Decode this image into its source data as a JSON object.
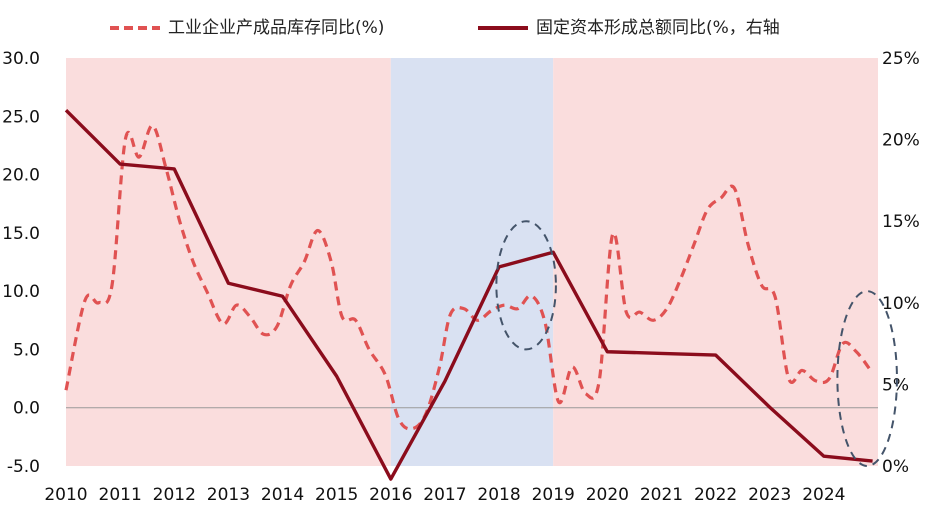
{
  "chart_data": {
    "type": "line",
    "legend_position": "top",
    "series": [
      {
        "name": "工业企业产成品库存同比(%)",
        "axis": "left",
        "style": "dashed",
        "color": "#E05252",
        "points": [
          [
            2010.0,
            1.5
          ],
          [
            2010.35,
            9.2
          ],
          [
            2010.6,
            9.0
          ],
          [
            2010.85,
            10.5
          ],
          [
            2011.1,
            23.1
          ],
          [
            2011.35,
            21.5
          ],
          [
            2011.6,
            24.2
          ],
          [
            2011.85,
            20.5
          ],
          [
            2012.1,
            16.0
          ],
          [
            2012.35,
            12.5
          ],
          [
            2012.6,
            10.0
          ],
          [
            2012.9,
            7.2
          ],
          [
            2013.15,
            8.8
          ],
          [
            2013.4,
            7.8
          ],
          [
            2013.65,
            6.3
          ],
          [
            2013.9,
            7.0
          ],
          [
            2014.15,
            10.5
          ],
          [
            2014.4,
            12.5
          ],
          [
            2014.65,
            15.2
          ],
          [
            2014.9,
            12.5
          ],
          [
            2015.1,
            7.8
          ],
          [
            2015.35,
            7.5
          ],
          [
            2015.6,
            5.0
          ],
          [
            2015.9,
            2.8
          ],
          [
            2016.15,
            -1.0
          ],
          [
            2016.4,
            -1.8
          ],
          [
            2016.65,
            -0.5
          ],
          [
            2016.9,
            3.5
          ],
          [
            2017.1,
            8.0
          ],
          [
            2017.35,
            8.5
          ],
          [
            2017.6,
            7.5
          ],
          [
            2017.85,
            8.3
          ],
          [
            2018.1,
            8.8
          ],
          [
            2018.35,
            8.5
          ],
          [
            2018.6,
            9.6
          ],
          [
            2018.85,
            7.3
          ],
          [
            2019.1,
            0.5
          ],
          [
            2019.35,
            3.5
          ],
          [
            2019.6,
            1.2
          ],
          [
            2019.85,
            2.3
          ],
          [
            2020.1,
            14.9
          ],
          [
            2020.35,
            8.2
          ],
          [
            2020.6,
            8.2
          ],
          [
            2020.85,
            7.5
          ],
          [
            2021.1,
            8.5
          ],
          [
            2021.35,
            11.0
          ],
          [
            2021.6,
            14.0
          ],
          [
            2021.85,
            17.0
          ],
          [
            2022.1,
            18.0
          ],
          [
            2022.35,
            18.8
          ],
          [
            2022.6,
            14.0
          ],
          [
            2022.85,
            10.5
          ],
          [
            2023.1,
            9.5
          ],
          [
            2023.35,
            2.5
          ],
          [
            2023.6,
            3.2
          ],
          [
            2023.85,
            2.3
          ],
          [
            2024.1,
            2.5
          ],
          [
            2024.35,
            5.5
          ],
          [
            2024.6,
            4.8
          ],
          [
            2024.85,
            3.3
          ]
        ]
      },
      {
        "name": "固定资本形成总额同比(%，右轴",
        "axis": "right",
        "style": "solid",
        "color": "#8B0C1C",
        "points": [
          [
            2010,
            21.8
          ],
          [
            2011,
            18.5
          ],
          [
            2012,
            18.2
          ],
          [
            2013,
            11.2
          ],
          [
            2014,
            10.4
          ],
          [
            2015,
            5.5
          ],
          [
            2016,
            -0.8
          ],
          [
            2017,
            5.2
          ],
          [
            2018,
            12.2
          ],
          [
            2019,
            13.1
          ],
          [
            2020,
            7.0
          ],
          [
            2021,
            6.9
          ],
          [
            2022,
            6.8
          ],
          [
            2023,
            3.6
          ],
          [
            2024,
            0.6
          ],
          [
            2024.9,
            0.3
          ]
        ]
      }
    ],
    "left_axis": {
      "min": -5.0,
      "max": 30.0,
      "ticks": [
        "-5.0",
        "0.0",
        "5.0",
        "10.0",
        "15.0",
        "20.0",
        "25.0",
        "30.0"
      ]
    },
    "right_axis": {
      "min": 0,
      "max": 25,
      "ticks": [
        "0%",
        "5%",
        "10%",
        "15%",
        "20%",
        "25%"
      ]
    },
    "x_axis": {
      "min": 2010,
      "max": 2025,
      "ticks": [
        "2010",
        "2011",
        "2012",
        "2013",
        "2014",
        "2015",
        "2016",
        "2017",
        "2018",
        "2019",
        "2020",
        "2021",
        "2022",
        "2023",
        "2024"
      ]
    },
    "shaded_periods": [
      {
        "from": 2010,
        "to": 2016,
        "color": "#FADDDD"
      },
      {
        "from": 2016,
        "to": 2019,
        "color": "#D9E1F2"
      },
      {
        "from": 2019,
        "to": 2025,
        "color": "#FADDDD"
      }
    ],
    "highlight_circles": [
      {
        "x_center": 2018.5,
        "x_radius": 0.55,
        "y_center": 10.5,
        "y_radius": 5.5,
        "axis": "left"
      },
      {
        "x_center": 2024.8,
        "x_radius": 0.55,
        "y_center": 2.5,
        "y_radius": 7.5,
        "axis": "left"
      }
    ],
    "grid": false
  }
}
